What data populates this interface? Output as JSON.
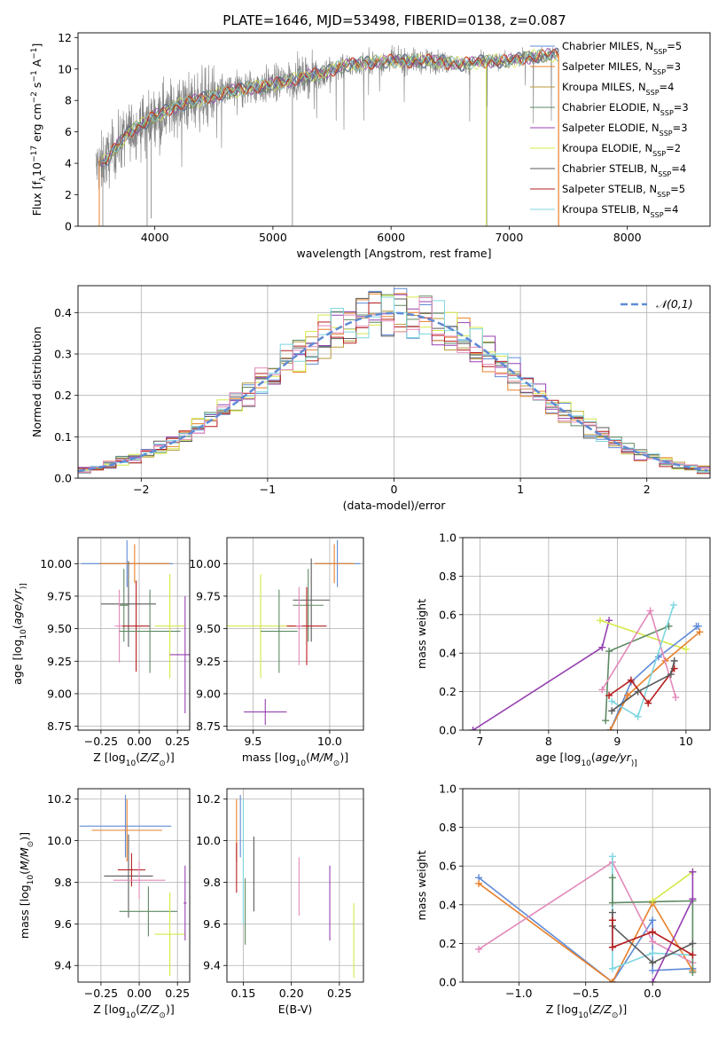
{
  "figure_title": "PLATE=1646, MJD=53498, FIBERID=0138, z=0.087",
  "colors": {
    "Chabrier MILES": "#5f8bd6",
    "Salpeter MILES": "#e8802c",
    "Kroupa MILES": "#b79a3c",
    "Chabrier ELODIE": "#5e8a63",
    "Salpeter ELODIE": "#9540b0",
    "Kroupa ELODIE": "#d6e84a",
    "Chabrier STELIB": "#5a5a5a",
    "Salpeter STELIB": "#b71c1c",
    "Kroupa STELIB": "#7ed6e0",
    "pink": "#e389b9",
    "data": "#808080",
    "normal": "#5f8bd6"
  },
  "chart_data": [
    {
      "id": "spectrum",
      "type": "line",
      "xlabel": "wavelength [Angstrom, rest frame]",
      "ylabel_parts": [
        "Flux [f",
        "λ",
        "10",
        "−17",
        " erg cm",
        "−2",
        " s",
        "−1",
        " A",
        "−1",
        "]"
      ],
      "xlim": [
        3350,
        8700
      ],
      "ylim": [
        0,
        12.3
      ],
      "xticks": [
        4000,
        5000,
        6000,
        7000,
        8000
      ],
      "yticks": [
        0,
        2,
        4,
        6,
        8,
        10,
        12
      ],
      "continuum": {
        "x": [
          3500,
          3600,
          3700,
          3800,
          3900,
          4000,
          4200,
          4400,
          4600,
          4800,
          5000,
          5200,
          5400,
          5600,
          5800,
          6000,
          6200,
          6400,
          6600,
          6800,
          7000,
          7200,
          7400
        ],
        "y": [
          3.7,
          4.3,
          5.3,
          6.1,
          6.5,
          7.0,
          7.7,
          8.1,
          8.5,
          8.8,
          9.0,
          9.4,
          9.7,
          10.2,
          10.4,
          10.5,
          10.5,
          10.5,
          10.3,
          10.5,
          10.5,
          10.8,
          10.9
        ]
      },
      "legend": [
        {
          "series": "Chabrier MILES",
          "pre": "Chabrier MILES, N",
          "sub": "SSP",
          "post": "=5"
        },
        {
          "series": "Salpeter MILES",
          "pre": "Salpeter MILES, N",
          "sub": "SSP",
          "post": "=3"
        },
        {
          "series": "Kroupa MILES",
          "pre": "Kroupa MILES, N",
          "sub": "SSP",
          "post": "=4"
        },
        {
          "series": "Chabrier ELODIE",
          "pre": "Chabrier ELODIE, N",
          "sub": "SSP",
          "post": "=3"
        },
        {
          "series": "Salpeter ELODIE",
          "pre": "Salpeter ELODIE, N",
          "sub": "SSP",
          "post": "=3"
        },
        {
          "series": "Kroupa ELODIE",
          "pre": "Kroupa ELODIE, N",
          "sub": "SSP",
          "post": "=2"
        },
        {
          "series": "Chabrier STELIB",
          "pre": "Chabrier STELIB, N",
          "sub": "SSP",
          "post": "=4"
        },
        {
          "series": "Salpeter STELIB",
          "pre": "Salpeter STELIB, N",
          "sub": "SSP",
          "post": "=5"
        },
        {
          "series": "Kroupa STELIB",
          "pre": "Kroupa STELIB, N",
          "sub": "SSP",
          "post": "=4"
        }
      ],
      "legend_loc": "right",
      "grid": false
    },
    {
      "id": "residuals",
      "type": "histogram",
      "xlabel": "(data-model)/error",
      "ylabel": "Normed distribution",
      "xlim": [
        -2.5,
        2.5
      ],
      "ylim": [
        0,
        0.465
      ],
      "xticks": [
        -2,
        -1,
        0,
        1,
        2
      ],
      "yticks": [
        0.0,
        0.1,
        0.2,
        0.3,
        0.4
      ],
      "bin_width": 0.1,
      "legend_label": "𝒩(0,1)",
      "legend_loc": "top-right",
      "grid": true
    },
    {
      "id": "age_vs_Z",
      "type": "errorbar",
      "xlabel_parts": [
        "Z [log",
        "10",
        "(",
        "Z/Z",
        "⊙",
        ")]"
      ],
      "ylabel_parts": [
        "age  [log",
        "10",
        "(",
        "age/yr",
        ")]"
      ],
      "xlim": [
        -0.4,
        0.33
      ],
      "ylim": [
        8.72,
        10.2
      ],
      "xticks": [
        -0.25,
        0.0,
        0.25
      ],
      "xticklabels": [
        "−0.25",
        "0.00",
        "0.25"
      ],
      "yticks": [
        8.75,
        9.0,
        9.25,
        9.5,
        9.75,
        10.0
      ],
      "yticklabels": [
        "8.75",
        "9.00",
        "9.25",
        "9.50",
        "9.75",
        "10.00"
      ],
      "points": [
        {
          "series": "Chabrier MILES",
          "x": -0.08,
          "xerr": 0.3,
          "y": 10.0,
          "yerr": 0.18
        },
        {
          "series": "Salpeter MILES",
          "x": -0.03,
          "xerr": 0.23,
          "y": 10.0,
          "yerr": 0.15
        },
        {
          "series": "Chabrier STELIB",
          "x": -0.07,
          "xerr": 0.18,
          "y": 9.69,
          "yerr": 0.33
        },
        {
          "series": "Chabrier ELODIE",
          "x": -0.1,
          "xerr": 0.03,
          "y": 9.68,
          "yerr": 0.28
        },
        {
          "series": "pink",
          "x": -0.13,
          "xerr": 0.03,
          "y": 9.52,
          "yerr": 0.28
        },
        {
          "series": "Salpeter STELIB",
          "x": -0.02,
          "xerr": 0.09,
          "y": 9.52,
          "yerr": 0.35
        },
        {
          "series": "Chabrier ELODIE",
          "x": 0.07,
          "xerr": 0.2,
          "y": 9.48,
          "yerr": 0.32
        },
        {
          "series": "Kroupa ELODIE",
          "x": 0.2,
          "xerr": 0.1,
          "y": 9.52,
          "yerr": 0.4
        },
        {
          "series": "Salpeter ELODIE",
          "x": 0.3,
          "xerr": 0.1,
          "y": 9.3,
          "yerr": 0.45
        }
      ],
      "grid": true
    },
    {
      "id": "age_vs_mass",
      "type": "errorbar",
      "xlabel_parts": [
        "mass [log",
        "10",
        "(",
        "M/M",
        "⊙",
        ")]"
      ],
      "xlim": [
        9.33,
        10.22
      ],
      "ylim": [
        8.72,
        10.2
      ],
      "xticks": [
        9.5,
        10.0
      ],
      "xticklabels": [
        "9.5",
        "10.0"
      ],
      "yticks": [
        8.75,
        9.0,
        9.25,
        9.5,
        9.75,
        10.0
      ],
      "yticklabels": [
        "8.75",
        "9.00",
        "9.25",
        "9.50",
        "9.75",
        "10.00"
      ],
      "points": [
        {
          "series": "Chabrier MILES",
          "x": 10.05,
          "xerr": 0.15,
          "y": 10.0,
          "yerr": 0.18
        },
        {
          "series": "Salpeter MILES",
          "x": 10.03,
          "xerr": 0.13,
          "y": 10.0,
          "yerr": 0.15
        },
        {
          "series": "Chabrier STELIB",
          "x": 9.88,
          "xerr": 0.12,
          "y": 9.72,
          "yerr": 0.32
        },
        {
          "series": "Chabrier ELODIE",
          "x": 9.86,
          "xerr": 0.1,
          "y": 9.68,
          "yerr": 0.28
        },
        {
          "series": "Kroupa ELODIE",
          "x": 9.55,
          "xerr": 0.22,
          "y": 9.52,
          "yerr": 0.4
        },
        {
          "series": "Salpeter STELIB",
          "x": 9.85,
          "xerr": 0.13,
          "y": 9.52,
          "yerr": 0.3
        },
        {
          "series": "pink",
          "x": 9.8,
          "xerr": 0.02,
          "y": 9.52,
          "yerr": 0.3
        },
        {
          "series": "Chabrier ELODIE",
          "x": 9.67,
          "xerr": 0.12,
          "y": 9.48,
          "yerr": 0.32
        },
        {
          "series": "Salpeter ELODIE",
          "x": 9.58,
          "xerr": 0.14,
          "y": 8.86,
          "yerr": 0.1
        }
      ],
      "grid": true
    },
    {
      "id": "weight_vs_age",
      "type": "line",
      "xlabel_parts": [
        "age  [log",
        "10",
        "(",
        "age/yr",
        ")]"
      ],
      "ylabel": "mass weight",
      "xlim": [
        6.75,
        10.35
      ],
      "ylim": [
        0,
        1.0
      ],
      "xticks": [
        7,
        8,
        9,
        10
      ],
      "xticklabels": [
        "7",
        "8",
        "9",
        "10"
      ],
      "yticks": [
        0.0,
        0.2,
        0.4,
        0.6,
        0.8,
        1.0
      ],
      "yticklabels": [
        "0.0",
        "0.2",
        "0.4",
        "0.6",
        "0.8",
        "1.0"
      ],
      "series": [
        {
          "series": "Salpeter ELODIE",
          "x": [
            6.9,
            8.78,
            8.88
          ],
          "y": [
            0.0,
            0.43,
            0.57
          ]
        },
        {
          "series": "Kroupa ELODIE",
          "x": [
            8.75,
            10.0
          ],
          "y": [
            0.57,
            0.42
          ]
        },
        {
          "series": "Chabrier ELODIE",
          "x": [
            8.83,
            8.88,
            9.75
          ],
          "y": [
            0.05,
            0.41,
            0.54
          ]
        },
        {
          "series": "Chabrier MILES",
          "x": [
            8.9,
            9.2,
            9.6,
            10.18,
            10.15
          ],
          "y": [
            0.0,
            0.25,
            0.38,
            0.54,
            0.54
          ]
        },
        {
          "series": "Salpeter MILES",
          "x": [
            8.9,
            9.15,
            9.7,
            10.2
          ],
          "y": [
            0.0,
            0.18,
            0.36,
            0.51
          ]
        },
        {
          "series": "pink",
          "x": [
            8.78,
            9.48,
            9.85
          ],
          "y": [
            0.21,
            0.62,
            0.17
          ]
        },
        {
          "series": "Kroupa STELIB",
          "x": [
            8.92,
            9.3,
            9.82
          ],
          "y": [
            0.15,
            0.07,
            0.65
          ]
        },
        {
          "series": "Salpeter STELIB",
          "x": [
            8.88,
            9.2,
            9.45,
            9.83
          ],
          "y": [
            0.18,
            0.26,
            0.14,
            0.32
          ]
        },
        {
          "series": "Chabrier STELIB",
          "x": [
            8.92,
            9.3,
            9.78,
            9.83
          ],
          "y": [
            0.1,
            0.2,
            0.29,
            0.36
          ]
        }
      ],
      "grid": true
    },
    {
      "id": "mass_vs_Z",
      "type": "errorbar",
      "xlabel_parts": [
        "Z [log",
        "10",
        "(",
        "Z/Z",
        "⊙",
        ")]"
      ],
      "ylabel_parts": [
        "mass [log",
        "10",
        "(",
        "M/M",
        "⊙",
        ")]"
      ],
      "xlim": [
        -0.4,
        0.33
      ],
      "ylim": [
        9.32,
        10.25
      ],
      "xticks": [
        -0.25,
        0.0,
        0.25
      ],
      "xticklabels": [
        "−0.25",
        "0.00",
        "0.25"
      ],
      "yticks": [
        9.4,
        9.6,
        9.8,
        10.0,
        10.2
      ],
      "yticklabels": [
        "9.4",
        "9.6",
        "9.8",
        "10.0",
        "10.2"
      ],
      "points": [
        {
          "series": "Chabrier MILES",
          "x": -0.09,
          "xerr": 0.3,
          "y": 10.07,
          "yerr": 0.15
        },
        {
          "series": "Salpeter MILES",
          "x": -0.08,
          "xerr": 0.23,
          "y": 10.05,
          "yerr": 0.15
        },
        {
          "series": "Chabrier STELIB",
          "x": -0.07,
          "xerr": 0.16,
          "y": 9.83,
          "yerr": 0.2
        },
        {
          "series": "Salpeter STELIB",
          "x": -0.05,
          "xerr": 0.09,
          "y": 9.86,
          "yerr": 0.08
        },
        {
          "series": "pink",
          "x": 0.0,
          "xerr": 0.17,
          "y": 9.81,
          "yerr": 0.09
        },
        {
          "series": "Chabrier ELODIE",
          "x": 0.06,
          "xerr": 0.19,
          "y": 9.66,
          "yerr": 0.12
        },
        {
          "series": "Kroupa ELODIE",
          "x": 0.2,
          "xerr": 0.1,
          "y": 9.55,
          "yerr": 0.2
        },
        {
          "series": "Salpeter ELODIE",
          "x": 0.3,
          "xerr": 0.01,
          "y": 9.7,
          "yerr": 0.18
        }
      ],
      "grid": true
    },
    {
      "id": "mass_vs_EBV",
      "type": "errorbar",
      "xlabel": "E(B-V)",
      "xlim": [
        0.133,
        0.275
      ],
      "ylim": [
        9.32,
        10.25
      ],
      "xticks": [
        0.15,
        0.2,
        0.25
      ],
      "xticklabels": [
        "0.15",
        "0.20",
        "0.25"
      ],
      "yticks": [
        9.4,
        9.6,
        9.8,
        10.0,
        10.2
      ],
      "yticklabels": [
        "9.4",
        "9.6",
        "9.8",
        "10.0",
        "10.2"
      ],
      "points": [
        {
          "series": "Salpeter MILES",
          "x": 0.143,
          "xerr": 0,
          "y": 10.05,
          "yerr": 0.15
        },
        {
          "series": "Chabrier MILES",
          "x": 0.147,
          "xerr": 0,
          "y": 10.07,
          "yerr": 0.15
        },
        {
          "series": "Salpeter STELIB",
          "x": 0.143,
          "xerr": 0,
          "y": 9.87,
          "yerr": 0.12
        },
        {
          "series": "Kroupa STELIB",
          "x": 0.15,
          "xerr": 0,
          "y": 9.9,
          "yerr": 0.3
        },
        {
          "series": "Chabrier ELODIE",
          "x": 0.152,
          "xerr": 0,
          "y": 9.66,
          "yerr": 0.16
        },
        {
          "series": "Chabrier STELIB",
          "x": 0.161,
          "xerr": 0,
          "y": 9.84,
          "yerr": 0.18
        },
        {
          "series": "pink",
          "x": 0.208,
          "xerr": 0,
          "y": 9.78,
          "yerr": 0.14
        },
        {
          "series": "Salpeter ELODIE",
          "x": 0.24,
          "xerr": 0,
          "y": 9.7,
          "yerr": 0.18
        },
        {
          "series": "Kroupa ELODIE",
          "x": 0.265,
          "xerr": 0,
          "y": 9.52,
          "yerr": 0.18
        }
      ],
      "grid": true
    },
    {
      "id": "weight_vs_Z",
      "type": "line",
      "xlabel_parts": [
        "Z [log",
        "10",
        "(",
        "Z/Z",
        "⊙",
        ")]"
      ],
      "ylabel": "mass weight",
      "xlim": [
        -1.42,
        0.43
      ],
      "ylim": [
        0,
        1.0
      ],
      "xticks": [
        -1.0,
        -0.5,
        0.0
      ],
      "xticklabels": [
        "−1.0",
        "−0.5",
        "0.0"
      ],
      "yticks": [
        0.0,
        0.2,
        0.4,
        0.6,
        0.8,
        1.0
      ],
      "yticklabels": [
        "0.0",
        "0.2",
        "0.4",
        "0.6",
        "0.8",
        "1.0"
      ],
      "series": [
        {
          "series": "Chabrier MILES",
          "x": [
            -1.3,
            -0.3,
            0.0,
            0.0,
            0.3
          ],
          "y": [
            0.54,
            0.0,
            0.32,
            0.06,
            0.07
          ]
        },
        {
          "series": "Salpeter MILES",
          "x": [
            -1.3,
            -0.3,
            0.0,
            0.3
          ],
          "y": [
            0.51,
            0.0,
            0.41,
            0.06
          ]
        },
        {
          "series": "pink",
          "x": [
            -1.3,
            -0.3,
            0.0,
            0.3
          ],
          "y": [
            0.17,
            0.62,
            0.21,
            0.1
          ]
        },
        {
          "series": "Kroupa STELIB",
          "x": [
            -0.3,
            -0.3,
            0.0,
            0.3
          ],
          "y": [
            0.65,
            0.07,
            0.15,
            0.14
          ]
        },
        {
          "series": "Chabrier ELODIE",
          "x": [
            -0.3,
            -0.3,
            0.3,
            0.3
          ],
          "y": [
            0.54,
            0.41,
            0.42,
            0.05
          ]
        },
        {
          "series": "Kroupa ELODIE",
          "x": [
            0.0,
            0.3
          ],
          "y": [
            0.42,
            0.57
          ]
        },
        {
          "series": "Salpeter ELODIE",
          "x": [
            0.0,
            0.3,
            0.3
          ],
          "y": [
            0.0,
            0.43,
            0.57
          ]
        },
        {
          "series": "Chabrier STELIB",
          "x": [
            -0.3,
            -0.3,
            0.0,
            0.3
          ],
          "y": [
            0.36,
            0.29,
            0.1,
            0.2
          ]
        },
        {
          "series": "Salpeter STELIB",
          "x": [
            -0.3,
            -0.3,
            0.0,
            0.3
          ],
          "y": [
            0.32,
            0.18,
            0.26,
            0.14
          ]
        }
      ],
      "grid": true
    }
  ]
}
